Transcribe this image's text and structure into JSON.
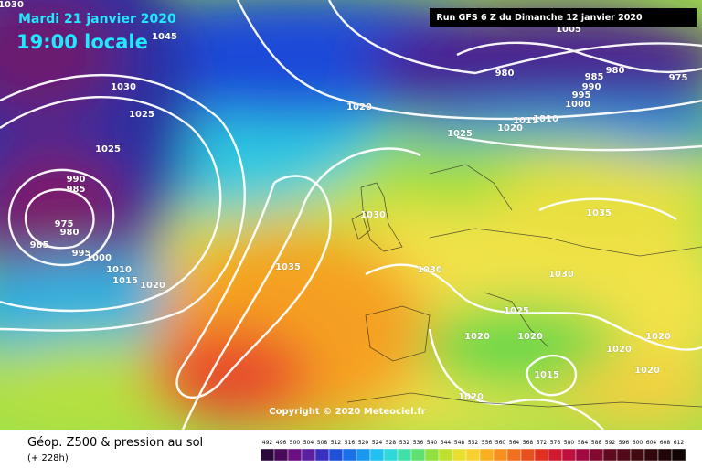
{
  "header": {
    "date": "Mardi 21 janvier 2020",
    "time": "19:00 locale",
    "run": "Run GFS 6 Z du Dimanche 12 janvier 2020"
  },
  "copyright": "Copyright © 2020 Meteociel.fr",
  "footer": {
    "title": "Géop. Z500 & pression au sol",
    "lead": "(+ 228h)"
  },
  "isobar_labels": [
    1030,
    1045,
    1030,
    1025,
    1025,
    1020,
    1025,
    1020,
    1015,
    1010,
    1005,
    980,
    985,
    980,
    975,
    990,
    995,
    1000,
    990,
    985,
    975,
    980,
    985,
    995,
    1000,
    1010,
    1015,
    1020,
    1035,
    1030,
    1030,
    1035,
    1030,
    1025,
    1020,
    1020,
    1020,
    1020,
    1015,
    1020,
    1020
  ],
  "scale": [
    492,
    496,
    500,
    504,
    508,
    512,
    516,
    520,
    524,
    528,
    532,
    536,
    540,
    544,
    548,
    552,
    556,
    560,
    564,
    568,
    572,
    576,
    580,
    584,
    588,
    592,
    596,
    600,
    604,
    608,
    612
  ]
}
